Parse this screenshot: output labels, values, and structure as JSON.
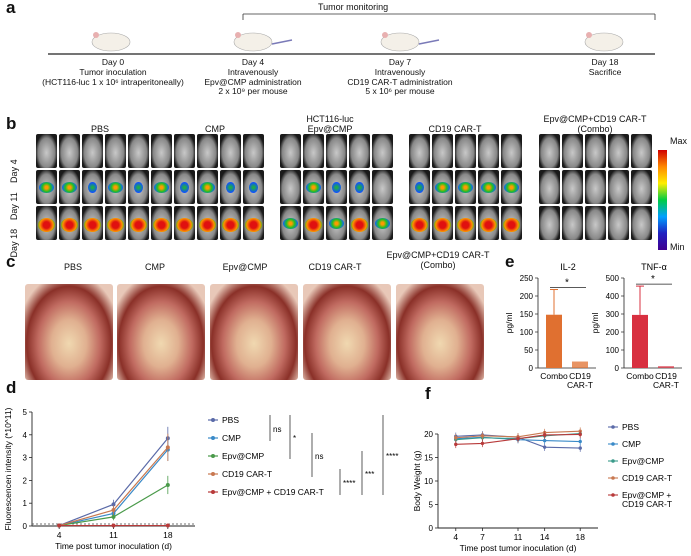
{
  "panels": {
    "a": "a",
    "b": "b",
    "c": "c",
    "d": "d",
    "e": "e",
    "f": "f"
  },
  "timeline": {
    "monitoring_label": "Tumor monitoring",
    "events": [
      {
        "day": "Day 0",
        "lines": [
          "Tumor inoculation",
          "(HCT116-luc 1 x 10⁶ intraperitoneally)"
        ]
      },
      {
        "day": "Day 4",
        "lines": [
          "Intravenously",
          "Epv@CMP administration",
          "2 x 10⁹ per mouse"
        ]
      },
      {
        "day": "Day 7",
        "lines": [
          "Intravenously",
          "CD19 CAR-T administration",
          "5 x 10⁶ per mouse"
        ]
      },
      {
        "day": "Day 18",
        "lines": [
          "Sacrifice"
        ]
      }
    ]
  },
  "imaging": {
    "groups": [
      "PBS",
      "CMP",
      "HCT116-luc\nEpv@CMP",
      "CD19 CAR-T",
      "Epv@CMP+CD19 CAR-T\n(Combo)"
    ],
    "rows": [
      "Day 4",
      "Day 11",
      "Day 18"
    ],
    "scale_max": "Max",
    "scale_min": "Min"
  },
  "photos": {
    "labels": [
      "PBS",
      "CMP",
      "Epv@CMP",
      "CD19 CAR-T",
      "Epv@CMP+CD19 CAR-T\n(Combo)"
    ]
  },
  "chart_data": [
    {
      "id": "e-il2",
      "type": "bar",
      "title": "IL-2",
      "ylabel": "pg/ml",
      "categories": [
        "Combo",
        "CD19\nCAR-T"
      ],
      "values": [
        148,
        18
      ],
      "errors": [
        70,
        0
      ],
      "ylim": [
        0,
        250
      ],
      "yticks": [
        0,
        50,
        100,
        150,
        200,
        250
      ],
      "significance": "*",
      "bar_color": "#e07030"
    },
    {
      "id": "e-tnf",
      "type": "bar",
      "title": "TNF-α",
      "ylabel": "pg/ml",
      "categories": [
        "Combo",
        "CD19\nCAR-T"
      ],
      "values": [
        295,
        10
      ],
      "errors": [
        160,
        0
      ],
      "ylim": [
        0,
        500
      ],
      "yticks": [
        0,
        100,
        200,
        300,
        400,
        500
      ],
      "significance": "*",
      "bar_color": "#d83040"
    },
    {
      "id": "d",
      "type": "line",
      "xlabel": "Time post tumor inoculation (d)",
      "ylabel": "Fluorescencen intensity (*10^11)",
      "x": [
        4,
        11,
        18
      ],
      "ylim": [
        0,
        5
      ],
      "yticks": [
        0,
        1,
        2,
        3,
        4,
        5
      ],
      "series": [
        {
          "name": "PBS",
          "color": "#5a6aa8",
          "values": [
            0.02,
            0.95,
            3.85
          ],
          "errors": [
            0.05,
            0.2,
            0.5
          ]
        },
        {
          "name": "CMP",
          "color": "#3a8ac8",
          "values": [
            0.02,
            0.55,
            3.35
          ],
          "errors": [
            0.05,
            0.2,
            0.5
          ]
        },
        {
          "name": "Epv@CMP",
          "color": "#4a9a4a",
          "values": [
            0.02,
            0.4,
            1.8
          ],
          "errors": [
            0.05,
            0.15,
            0.4
          ]
        },
        {
          "name": "CD19 CAR-T",
          "color": "#c87850",
          "values": [
            0.02,
            0.7,
            3.45
          ],
          "errors": [
            0.05,
            0.2,
            0.6
          ]
        },
        {
          "name": "Epv@CMP + CD19 CAR-T",
          "color": "#b83a3a",
          "values": [
            0.02,
            0.02,
            0.02
          ],
          "errors": [
            0.02,
            0.02,
            0.02
          ]
        }
      ],
      "comparisons": [
        "ns",
        "*",
        "ns",
        "****",
        "****",
        "***"
      ]
    },
    {
      "id": "f",
      "type": "line",
      "xlabel": "Time post tumor inoculation (d)",
      "ylabel": "Body Weight (g)",
      "x": [
        4,
        7,
        11,
        14,
        18
      ],
      "ylim": [
        0,
        20
      ],
      "yticks": [
        0,
        5,
        10,
        15,
        20
      ],
      "series": [
        {
          "name": "PBS",
          "color": "#5a6aa8",
          "values": [
            19.5,
            19.8,
            19.3,
            17.2,
            17.0
          ]
        },
        {
          "name": "CMP",
          "color": "#3a8ac8",
          "values": [
            19.0,
            19.3,
            18.8,
            18.6,
            18.4
          ]
        },
        {
          "name": "Epv@CMP",
          "color": "#3a9a8a",
          "values": [
            18.8,
            19.2,
            19.0,
            19.6,
            20.1
          ]
        },
        {
          "name": "CD19 CAR-T",
          "color": "#c87850",
          "values": [
            19.2,
            19.6,
            19.4,
            20.3,
            20.6
          ]
        },
        {
          "name": "Epv@CMP +\nCD19 CAR-T",
          "color": "#b83a3a",
          "values": [
            17.8,
            18.0,
            19.0,
            19.8,
            19.9
          ]
        }
      ]
    }
  ]
}
